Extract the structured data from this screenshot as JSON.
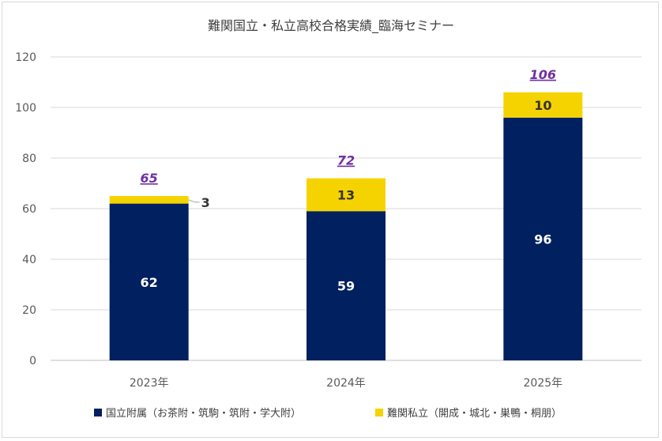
{
  "chart_data": {
    "type": "bar",
    "stacked": true,
    "title": "難関国立・私立高校合格実績_臨海セミナー",
    "categories": [
      "2023年",
      "2024年",
      "2025年"
    ],
    "series": [
      {
        "name": "国立附属（お茶附・筑駒・筑附・学大附）",
        "values": [
          62,
          59,
          96
        ],
        "color": "#002060"
      },
      {
        "name": "難関私立（開成・城北・巣鴨・桐朋）",
        "values": [
          3,
          13,
          10
        ],
        "color": "#f5d300"
      }
    ],
    "totals": [
      "65",
      "72",
      "106"
    ],
    "total_color": "#7030a0",
    "ylim": [
      0,
      120
    ],
    "yticks": [
      "0",
      "20",
      "40",
      "60",
      "80",
      "100",
      "120"
    ],
    "grid": true,
    "legend": "bottom"
  }
}
